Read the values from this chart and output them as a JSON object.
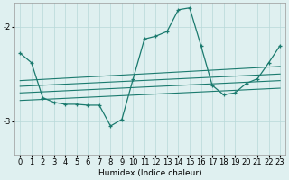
{
  "xlabel": "Humidex (Indice chaleur)",
  "bg_color": "#dff0f0",
  "line_color": "#1a7a6e",
  "grid_color": "#b8d8d8",
  "xlim": [
    -0.5,
    23.5
  ],
  "ylim": [
    -3.35,
    -1.75
  ],
  "yticks": [
    -3,
    -2
  ],
  "xticks": [
    0,
    1,
    2,
    3,
    4,
    5,
    6,
    7,
    8,
    9,
    10,
    11,
    12,
    13,
    14,
    15,
    16,
    17,
    18,
    19,
    20,
    21,
    22,
    23
  ],
  "main_series": {
    "x": [
      0,
      1,
      2,
      3,
      4,
      5,
      6,
      7,
      8,
      9,
      10,
      11,
      12,
      13,
      14,
      15,
      16,
      17,
      18,
      19,
      20,
      21,
      22,
      23
    ],
    "y": [
      -2.28,
      -2.38,
      -2.75,
      -2.8,
      -2.82,
      -2.82,
      -2.83,
      -2.83,
      -3.05,
      -2.98,
      -2.55,
      -2.13,
      -2.1,
      -2.05,
      -1.82,
      -1.8,
      -2.2,
      -2.62,
      -2.72,
      -2.7,
      -2.6,
      -2.55,
      -2.38,
      -2.2
    ]
  },
  "band_lines": [
    {
      "x": [
        0,
        23
      ],
      "y": [
        -2.57,
        -2.42
      ]
    },
    {
      "x": [
        0,
        23
      ],
      "y": [
        -2.63,
        -2.5
      ]
    },
    {
      "x": [
        0,
        23
      ],
      "y": [
        -2.7,
        -2.57
      ]
    },
    {
      "x": [
        0,
        23
      ],
      "y": [
        -2.78,
        -2.65
      ]
    }
  ]
}
